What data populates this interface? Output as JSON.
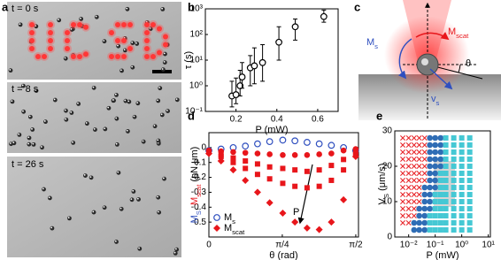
{
  "panel_labels": [
    "a",
    "b",
    "c",
    "d",
    "e"
  ],
  "micrographs": [
    {
      "label": "t = 0 s"
    },
    {
      "label": "t = 8 s"
    },
    {
      "label": "t = 26 s"
    }
  ],
  "diagram": {
    "ms": "Ms",
    "mscat": "Mscat",
    "theta": "θ",
    "vs": "vs"
  },
  "chart_data": [
    {
      "type": "scatter",
      "xlabel": "P (mW)",
      "ylabel": "τ (s)",
      "color": "#000000",
      "marker": "circle-open",
      "x": [
        0.18,
        0.2,
        0.22,
        0.23,
        0.27,
        0.29,
        0.33,
        0.41,
        0.49,
        0.63
      ],
      "values": [
        0.4,
        0.45,
        1,
        2.2,
        5,
        6,
        8,
        50,
        200,
        500
      ],
      "err_low": [
        0.15,
        0.2,
        0.4,
        0.8,
        1,
        1.2,
        1.5,
        10,
        60,
        300
      ],
      "err_high": [
        1.5,
        2,
        4,
        8,
        15,
        30,
        40,
        200,
        400,
        900
      ],
      "xlim": [
        0.05,
        0.7
      ],
      "xticks": [
        0.2,
        0.4,
        0.6
      ],
      "ylim": [
        0.1,
        1000
      ],
      "yscale": "log",
      "yticks": [
        {
          "value": 0.1,
          "label": "10⁻¹"
        },
        {
          "value": 1,
          "label": "10⁰"
        },
        {
          "value": 10,
          "label": "10¹"
        },
        {
          "value": 100,
          "label": "10²"
        },
        {
          "value": 1000,
          "label": "10³"
        }
      ]
    },
    {
      "type": "scatter",
      "xlabel": "θ (rad)",
      "ylabel": "MS, Mscat (pN.μm)",
      "annotation": "P",
      "legend": "lower left",
      "x": [
        0,
        0.13,
        0.26,
        0.39,
        0.52,
        0.65,
        0.79,
        0.92,
        1.05,
        1.18,
        1.31,
        1.44,
        1.57
      ],
      "series": [
        {
          "name": "Ms",
          "color": "#2f4fbf",
          "marker": "circle-open",
          "values": [
            -0.02,
            -0.01,
            0,
            0.01,
            0.025,
            0.04,
            0.05,
            0.045,
            0.035,
            0.025,
            0.015,
            0,
            -0.02
          ]
        },
        {
          "color": "#e8161b",
          "marker": "circle",
          "values": [
            -0.02,
            -0.025,
            -0.03,
            -0.035,
            -0.04,
            -0.045,
            -0.05,
            -0.05,
            -0.05,
            -0.045,
            -0.04,
            -0.02,
            -0.01
          ]
        },
        {
          "color": "#e8161b",
          "marker": "square",
          "values": [
            -0.03,
            -0.05,
            -0.07,
            -0.09,
            -0.11,
            -0.13,
            -0.14,
            -0.15,
            -0.16,
            -0.15,
            -0.12,
            -0.08,
            -0.03
          ]
        },
        {
          "color": "#e8161b",
          "marker": "square",
          "values": [
            -0.03,
            -0.06,
            -0.1,
            -0.14,
            -0.18,
            -0.21,
            -0.24,
            -0.26,
            -0.27,
            -0.26,
            -0.22,
            -0.15,
            -0.05
          ]
        },
        {
          "name": "Mscat",
          "color": "#e8161b",
          "marker": "diamond",
          "values": [
            -0.04,
            -0.09,
            -0.15,
            -0.22,
            -0.3,
            -0.37,
            -0.44,
            -0.5,
            -0.54,
            -0.55,
            -0.5,
            -0.35,
            -0.06
          ]
        }
      ],
      "xlim": [
        0,
        1.6
      ],
      "xticks": [
        0,
        {
          "value": 0.785,
          "label": "π/4"
        },
        {
          "value": 1.571,
          "label": "π/2"
        }
      ],
      "ylim": [
        -0.6,
        0.1
      ],
      "yticks": [
        -0.5,
        -0.4,
        -0.3,
        -0.2,
        -0.1,
        0
      ]
    },
    {
      "type": "scatter",
      "xlabel": "P (mW)",
      "ylabel": "VS (μm/s)",
      "series": [
        {
          "color": "#e8262a",
          "marker": "x",
          "x": [
            0.006,
            0.006,
            0.006,
            0.006,
            0.006,
            0.006,
            0.006,
            0.006,
            0.006,
            0.006,
            0.006,
            0.006,
            0.006,
            0.01,
            0.01,
            0.01,
            0.01,
            0.01,
            0.01,
            0.01,
            0.01,
            0.01,
            0.01,
            0.01,
            0.01,
            0.01,
            0.016,
            0.016,
            0.016,
            0.016,
            0.016,
            0.016,
            0.016,
            0.016,
            0.016,
            0.016,
            0.016,
            0.016,
            0.025,
            0.025,
            0.025,
            0.025,
            0.025,
            0.025,
            0.025,
            0.025,
            0.025,
            0.025,
            0.04,
            0.04,
            0.04,
            0.04,
            0.04,
            0.04,
            0.04
          ],
          "values": [
            4,
            6,
            8,
            10,
            12,
            14,
            16,
            18,
            20,
            22,
            24,
            26,
            28,
            4,
            6,
            8,
            10,
            12,
            14,
            16,
            18,
            20,
            22,
            24,
            26,
            28,
            6,
            8,
            10,
            12,
            14,
            16,
            18,
            20,
            22,
            24,
            26,
            28,
            10,
            12,
            14,
            16,
            18,
            20,
            22,
            24,
            26,
            28,
            16,
            18,
            20,
            22,
            24,
            26,
            28
          ]
        },
        {
          "color": "#2f6db5",
          "marker": "circle",
          "x": [
            0.016,
            0.016,
            0.025,
            0.025,
            0.025,
            0.025,
            0.04,
            0.04,
            0.04,
            0.04,
            0.04,
            0.04,
            0.04,
            0.063,
            0.063,
            0.063,
            0.063,
            0.063,
            0.063,
            0.063,
            0.063,
            0.063,
            0.063,
            0.063,
            0.1,
            0.1,
            0.1,
            0.1,
            0.1,
            0.1,
            0.1,
            0.1,
            0.16,
            0.16,
            0.16,
            0.16,
            0.16
          ],
          "values": [
            2,
            4,
            2,
            4,
            6,
            8,
            2,
            4,
            6,
            8,
            10,
            12,
            14,
            8,
            10,
            12,
            14,
            16,
            18,
            20,
            22,
            24,
            26,
            28,
            14,
            16,
            18,
            20,
            22,
            24,
            26,
            28,
            20,
            22,
            24,
            26,
            28
          ]
        },
        {
          "color": "#45c8d4",
          "marker": "square",
          "x": [
            0.063,
            0.063,
            0.063,
            0.1,
            0.1,
            0.1,
            0.1,
            0.1,
            0.1,
            0.16,
            0.16,
            0.16,
            0.16,
            0.16,
            0.16,
            0.16,
            0.16,
            0.16,
            0.25,
            0.25,
            0.25,
            0.25,
            0.25,
            0.25,
            0.25,
            0.25,
            0.25,
            0.25,
            0.25,
            0.25,
            0.25,
            0.25,
            0.5,
            0.5,
            0.5,
            0.5,
            0.5,
            0.5,
            0.5,
            0.5,
            0.5,
            0.5,
            0.5,
            0.5,
            0.5,
            0.5,
            1,
            1,
            1,
            1,
            1,
            1,
            1,
            1,
            1,
            1,
            1,
            1,
            1,
            1,
            2,
            2,
            2,
            2,
            2,
            2,
            2,
            2,
            2,
            2,
            2,
            2,
            2,
            2
          ],
          "values": [
            2,
            4,
            6,
            2,
            4,
            6,
            8,
            10,
            12,
            2,
            4,
            6,
            8,
            10,
            12,
            14,
            16,
            18,
            2,
            4,
            6,
            8,
            10,
            12,
            14,
            16,
            18,
            20,
            22,
            24,
            26,
            28,
            2,
            4,
            6,
            8,
            10,
            12,
            14,
            16,
            18,
            20,
            22,
            24,
            26,
            28,
            2,
            4,
            6,
            8,
            10,
            12,
            14,
            16,
            18,
            20,
            22,
            24,
            26,
            28,
            2,
            4,
            6,
            8,
            10,
            12,
            14,
            16,
            18,
            20,
            22,
            24,
            26,
            28
          ]
        }
      ],
      "xlim": [
        0.003,
        12
      ],
      "xscale": "log",
      "xticks": [
        {
          "value": 0.01,
          "label": "10⁻²"
        },
        {
          "value": 0.1,
          "label": "10⁻¹"
        },
        {
          "value": 1,
          "label": "10⁰"
        },
        {
          "value": 10,
          "label": "10¹"
        }
      ],
      "ylim": [
        0,
        30
      ],
      "yticks": [
        0,
        10,
        20,
        30
      ]
    }
  ]
}
